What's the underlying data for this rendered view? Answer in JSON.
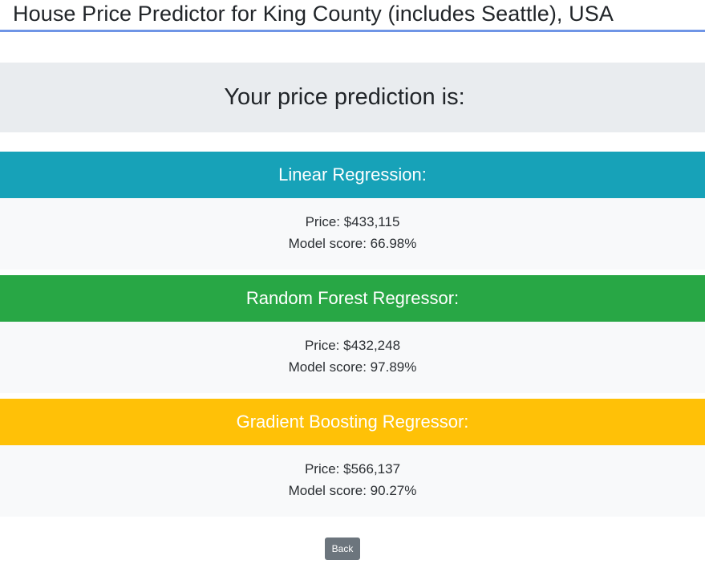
{
  "header": {
    "title": "House Price Predictor for King County (includes Seattle), USA"
  },
  "banner": {
    "heading": "Your price prediction is:"
  },
  "models": [
    {
      "name": "Linear Regression:",
      "price_label": "Price: $433,115",
      "score_label": "Model score: 66.98%",
      "color": "#17a2b8"
    },
    {
      "name": "Random Forest Regressor:",
      "price_label": "Price: $432,248",
      "score_label": "Model score: 97.89%",
      "color": "#28a745"
    },
    {
      "name": "Gradient Boosting Regressor:",
      "price_label": "Price: $566,137",
      "score_label": "Model score: 90.27%",
      "color": "#ffc107"
    }
  ],
  "actions": {
    "back_label": "Back"
  }
}
